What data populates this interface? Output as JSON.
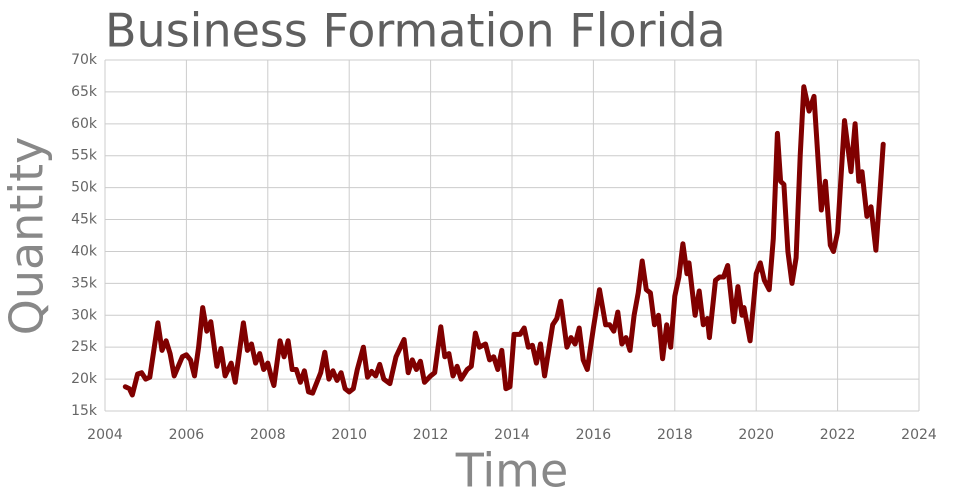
{
  "chart_data": {
    "type": "line",
    "title": "Business Formation Florida",
    "x_label": "Time",
    "y_label": "Quantity",
    "color": "#800000",
    "grid": true,
    "xlim": [
      2004,
      2024
    ],
    "xticks": [
      2004,
      2006,
      2008,
      2010,
      2012,
      2014,
      2016,
      2018,
      2020,
      2022,
      2024
    ],
    "ylim": [
      15000,
      70000
    ],
    "yticks": [
      {
        "value": 15000,
        "label": "15k"
      },
      {
        "value": 20000,
        "label": "20k"
      },
      {
        "value": 25000,
        "label": "25k"
      },
      {
        "value": 30000,
        "label": "30k"
      },
      {
        "value": 35000,
        "label": "35k"
      },
      {
        "value": 40000,
        "label": "40k"
      },
      {
        "value": 45000,
        "label": "45k"
      },
      {
        "value": 50000,
        "label": "50k"
      },
      {
        "value": 55000,
        "label": "55k"
      },
      {
        "value": 60000,
        "label": "60k"
      },
      {
        "value": 65000,
        "label": "65k"
      },
      {
        "value": 70000,
        "label": "70k"
      }
    ],
    "x": [
      2004.5,
      2004.6,
      2004.67,
      2004.8,
      2004.9,
      2005.0,
      2005.1,
      2005.3,
      2005.4,
      2005.5,
      2005.6,
      2005.7,
      2005.9,
      2006.0,
      2006.1,
      2006.2,
      2006.3,
      2006.4,
      2006.5,
      2006.6,
      2006.75,
      2006.85,
      2006.95,
      2007.1,
      2007.2,
      2007.4,
      2007.5,
      2007.6,
      2007.7,
      2007.8,
      2007.9,
      2008.0,
      2008.1,
      2008.15,
      2008.3,
      2008.4,
      2008.5,
      2008.6,
      2008.7,
      2008.8,
      2008.9,
      2009.0,
      2009.1,
      2009.3,
      2009.4,
      2009.5,
      2009.6,
      2009.7,
      2009.8,
      2009.9,
      2010.0,
      2010.1,
      2010.2,
      2010.35,
      2010.45,
      2010.55,
      2010.65,
      2010.75,
      2010.85,
      2011.0,
      2011.15,
      2011.35,
      2011.45,
      2011.55,
      2011.65,
      2011.75,
      2011.85,
      2012.0,
      2012.1,
      2012.25,
      2012.35,
      2012.45,
      2012.55,
      2012.65,
      2012.75,
      2012.9,
      2013.0,
      2013.1,
      2013.2,
      2013.35,
      2013.45,
      2013.55,
      2013.65,
      2013.75,
      2013.85,
      2013.95,
      2014.05,
      2014.2,
      2014.3,
      2014.4,
      2014.5,
      2014.6,
      2014.7,
      2014.8,
      2015.0,
      2015.1,
      2015.2,
      2015.35,
      2015.45,
      2015.55,
      2015.65,
      2015.75,
      2015.85,
      2016.0,
      2016.15,
      2016.3,
      2016.4,
      2016.5,
      2016.6,
      2016.7,
      2016.8,
      2016.9,
      2017.0,
      2017.1,
      2017.2,
      2017.3,
      2017.4,
      2017.5,
      2017.6,
      2017.7,
      2017.8,
      2017.9,
      2018.0,
      2018.1,
      2018.2,
      2018.3,
      2018.35,
      2018.5,
      2018.6,
      2018.7,
      2018.8,
      2018.85,
      2019.0,
      2019.1,
      2019.2,
      2019.3,
      2019.45,
      2019.55,
      2019.65,
      2019.7,
      2019.85,
      2020.0,
      2020.1,
      2020.2,
      2020.32,
      2020.42,
      2020.52,
      2020.6,
      2020.68,
      2020.78,
      2020.88,
      2020.98,
      2021.08,
      2021.17,
      2021.3,
      2021.42,
      2021.6,
      2021.7,
      2021.82,
      2021.9,
      2022.0,
      2022.17,
      2022.33,
      2022.43,
      2022.52,
      2022.6,
      2022.72,
      2022.82,
      2022.94,
      2023.05,
      2023.12
    ],
    "values": [
      18800,
      18500,
      17500,
      20800,
      21000,
      20000,
      20300,
      28800,
      24500,
      26000,
      24000,
      20500,
      23500,
      23800,
      23000,
      20500,
      25000,
      31200,
      27500,
      29000,
      22000,
      24800,
      20500,
      22500,
      19500,
      28800,
      24500,
      25500,
      22500,
      24000,
      21500,
      22500,
      20000,
      19000,
      26000,
      23500,
      26000,
      21500,
      21500,
      19500,
      21300,
      18000,
      17800,
      21000,
      24200,
      20000,
      21300,
      19800,
      21000,
      18500,
      18000,
      18500,
      21500,
      25000,
      20300,
      21200,
      20500,
      22300,
      20000,
      19300,
      23500,
      26200,
      21000,
      23000,
      21500,
      22800,
      19500,
      20500,
      21000,
      28200,
      23500,
      24000,
      20500,
      22000,
      20000,
      21500,
      22000,
      27200,
      25000,
      25500,
      23000,
      23500,
      21500,
      24500,
      18500,
      18800,
      27000,
      27000,
      28000,
      25000,
      25300,
      22500,
      25500,
      20500,
      28500,
      29500,
      32200,
      25000,
      26500,
      25500,
      28000,
      23000,
      21500,
      28000,
      34000,
      28500,
      28500,
      27500,
      30500,
      25500,
      26500,
      24500,
      30000,
      33500,
      38500,
      34000,
      33500,
      28500,
      30000,
      23200,
      28500,
      25000,
      33000,
      36000,
      41200,
      36500,
      38200,
      30000,
      33800,
      28500,
      29500,
      26500,
      35500,
      36000,
      36000,
      37800,
      29000,
      34500,
      30000,
      31200,
      26000,
      36500,
      38200,
      35500,
      34000,
      42000,
      58500,
      51000,
      50500,
      40000,
      35000,
      39000,
      55000,
      65800,
      62000,
      64300,
      46500,
      51000,
      41000,
      40000,
      43000,
      60500,
      52500,
      60000,
      51000,
      52500,
      45500,
      47000,
      40200,
      50000,
      56800
    ]
  }
}
